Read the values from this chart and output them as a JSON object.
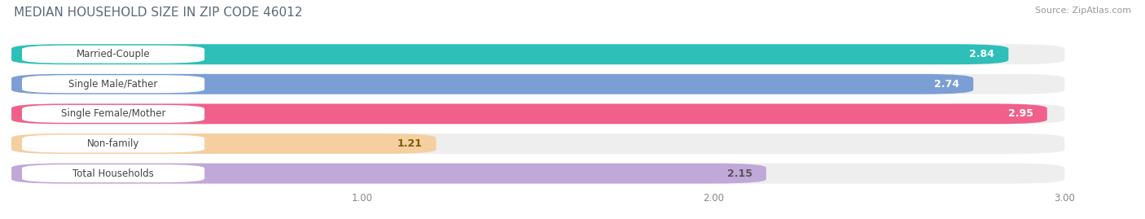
{
  "title": "MEDIAN HOUSEHOLD SIZE IN ZIP CODE 46012",
  "source": "Source: ZipAtlas.com",
  "categories": [
    "Married-Couple",
    "Single Male/Father",
    "Single Female/Mother",
    "Non-family",
    "Total Households"
  ],
  "values": [
    2.84,
    2.74,
    2.95,
    1.21,
    2.15
  ],
  "bar_colors": [
    "#2dbfb8",
    "#7b9fd4",
    "#f0608a",
    "#f5cfa0",
    "#c0a8d8"
  ],
  "value_colors": [
    "white",
    "white",
    "white",
    "#7a5c00",
    "#555555"
  ],
  "xlim_min": 0,
  "xlim_max": 3.18,
  "bar_xlim_max": 3.0,
  "xticks": [
    1.0,
    2.0,
    3.0
  ],
  "background_color": "#ffffff",
  "bar_bg_color": "#eeeeee",
  "title_color": "#5a6a7a",
  "source_color": "#999999",
  "label_text_color": "#444444",
  "title_fontsize": 11,
  "source_fontsize": 8,
  "label_fontsize": 8.5,
  "value_fontsize": 9,
  "bar_height": 0.68,
  "bar_gap": 0.1
}
